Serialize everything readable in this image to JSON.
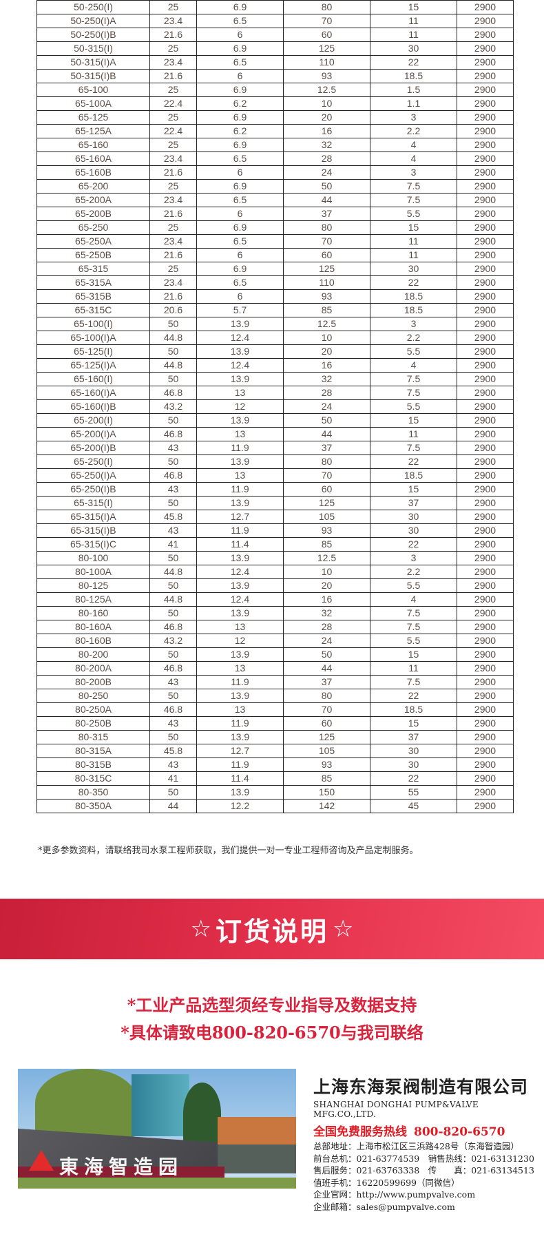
{
  "table": {
    "rows": [
      [
        "50-250(I)",
        "25",
        "6.9",
        "80",
        "15",
        "2900"
      ],
      [
        "50-250(I)A",
        "23.4",
        "6.5",
        "70",
        "11",
        "2900"
      ],
      [
        "50-250(I)B",
        "21.6",
        "6",
        "60",
        "11",
        "2900"
      ],
      [
        "50-315(I)",
        "25",
        "6.9",
        "125",
        "30",
        "2900"
      ],
      [
        "50-315(I)A",
        "23.4",
        "6.5",
        "110",
        "22",
        "2900"
      ],
      [
        "50-315(I)B",
        "21.6",
        "6",
        "93",
        "18.5",
        "2900"
      ],
      [
        "65-100",
        "25",
        "6.9",
        "12.5",
        "1.5",
        "2900"
      ],
      [
        "65-100A",
        "22.4",
        "6.2",
        "10",
        "1.1",
        "2900"
      ],
      [
        "65-125",
        "25",
        "6.9",
        "20",
        "3",
        "2900"
      ],
      [
        "65-125A",
        "22.4",
        "6.2",
        "16",
        "2.2",
        "2900"
      ],
      [
        "65-160",
        "25",
        "6.9",
        "32",
        "4",
        "2900"
      ],
      [
        "65-160A",
        "23.4",
        "6.5",
        "28",
        "4",
        "2900"
      ],
      [
        "65-160B",
        "21.6",
        "6",
        "24",
        "3",
        "2900"
      ],
      [
        "65-200",
        "25",
        "6.9",
        "50",
        "7.5",
        "2900"
      ],
      [
        "65-200A",
        "23.4",
        "6.5",
        "44",
        "7.5",
        "2900"
      ],
      [
        "65-200B",
        "21.6",
        "6",
        "37",
        "5.5",
        "2900"
      ],
      [
        "65-250",
        "25",
        "6.9",
        "80",
        "15",
        "2900"
      ],
      [
        "65-250A",
        "23.4",
        "6.5",
        "70",
        "11",
        "2900"
      ],
      [
        "65-250B",
        "21.6",
        "6",
        "60",
        "11",
        "2900"
      ],
      [
        "65-315",
        "25",
        "6.9",
        "125",
        "30",
        "2900"
      ],
      [
        "65-315A",
        "23.4",
        "6.5",
        "110",
        "22",
        "2900"
      ],
      [
        "65-315B",
        "21.6",
        "6",
        "93",
        "18.5",
        "2900"
      ],
      [
        "65-315C",
        "20.6",
        "5.7",
        "85",
        "18.5",
        "2900"
      ],
      [
        "65-100(I)",
        "50",
        "13.9",
        "12.5",
        "3",
        "2900"
      ],
      [
        "65-100(I)A",
        "44.8",
        "12.4",
        "10",
        "2.2",
        "2900"
      ],
      [
        "65-125(I)",
        "50",
        "13.9",
        "20",
        "5.5",
        "2900"
      ],
      [
        "65-125(I)A",
        "44.8",
        "12.4",
        "16",
        "4",
        "2900"
      ],
      [
        "65-160(I)",
        "50",
        "13.9",
        "32",
        "7.5",
        "2900"
      ],
      [
        "65-160(I)A",
        "46.8",
        "13",
        "28",
        "7.5",
        "2900"
      ],
      [
        "65-160(I)B",
        "43.2",
        "12",
        "24",
        "5.5",
        "2900"
      ],
      [
        "65-200(I)",
        "50",
        "13.9",
        "50",
        "15",
        "2900"
      ],
      [
        "65-200(I)A",
        "46.8",
        "13",
        "44",
        "11",
        "2900"
      ],
      [
        "65-200(I)B",
        "43",
        "11.9",
        "37",
        "7.5",
        "2900"
      ],
      [
        "65-250(I)",
        "50",
        "13.9",
        "80",
        "22",
        "2900"
      ],
      [
        "65-250(I)A",
        "46.8",
        "13",
        "70",
        "18.5",
        "2900"
      ],
      [
        "65-250(I)B",
        "43",
        "11.9",
        "60",
        "15",
        "2900"
      ],
      [
        "65-315(I)",
        "50",
        "13.9",
        "125",
        "37",
        "2900"
      ],
      [
        "65-315(I)A",
        "45.8",
        "12.7",
        "105",
        "30",
        "2900"
      ],
      [
        "65-315(I)B",
        "43",
        "11.9",
        "93",
        "30",
        "2900"
      ],
      [
        "65-315(I)C",
        "41",
        "11.4",
        "85",
        "22",
        "2900"
      ],
      [
        "80-100",
        "50",
        "13.9",
        "12.5",
        "3",
        "2900"
      ],
      [
        "80-100A",
        "44.8",
        "12.4",
        "10",
        "2.2",
        "2900"
      ],
      [
        "80-125",
        "50",
        "13.9",
        "20",
        "5.5",
        "2900"
      ],
      [
        "80-125A",
        "44.8",
        "12.4",
        "16",
        "4",
        "2900"
      ],
      [
        "80-160",
        "50",
        "13.9",
        "32",
        "7.5",
        "2900"
      ],
      [
        "80-160A",
        "46.8",
        "13",
        "28",
        "7.5",
        "2900"
      ],
      [
        "80-160B",
        "43.2",
        "12",
        "24",
        "5.5",
        "2900"
      ],
      [
        "80-200",
        "50",
        "13.9",
        "50",
        "15",
        "2900"
      ],
      [
        "80-200A",
        "46.8",
        "13",
        "44",
        "11",
        "2900"
      ],
      [
        "80-200B",
        "43",
        "11.9",
        "37",
        "7.5",
        "2900"
      ],
      [
        "80-250",
        "50",
        "13.9",
        "80",
        "22",
        "2900"
      ],
      [
        "80-250A",
        "46.8",
        "13",
        "70",
        "18.5",
        "2900"
      ],
      [
        "80-250B",
        "43",
        "11.9",
        "60",
        "15",
        "2900"
      ],
      [
        "80-315",
        "50",
        "13.9",
        "125",
        "37",
        "2900"
      ],
      [
        "80-315A",
        "45.8",
        "12.7",
        "105",
        "30",
        "2900"
      ],
      [
        "80-315B",
        "43",
        "11.9",
        "93",
        "30",
        "2900"
      ],
      [
        "80-315C",
        "41",
        "11.4",
        "85",
        "22",
        "2900"
      ],
      [
        "80-350",
        "50",
        "13.9",
        "150",
        "55",
        "2900"
      ],
      [
        "80-350A",
        "44",
        "12.2",
        "142",
        "45",
        "2900"
      ]
    ]
  },
  "footnote": "*更多参数资料，请联络我司水泵工程师获取，我们提供一对一专业工程师咨询及产品定制服务。",
  "banner": {
    "star_left": "☆",
    "title": "订货说明",
    "star_right": "☆"
  },
  "order_notes": [
    "*工业产品选型须经专业指导及数据支持",
    "*具体请致电800-820-6570与我司联络"
  ],
  "photo": {
    "sign_text": "東海智造园"
  },
  "company": {
    "name_cn": "上海东海泵阀制造有限公司",
    "name_en": "SHANGHAI DONGHAI PUMP&VALVE MFG.CO.,LTD.",
    "hotline_label": "全国免费服务热线",
    "hotline": "800-820-6570",
    "info": [
      "总部地址：上海市松江区三浜路428号（东海智造园）",
      "前台总机：021-63774539　销售热线：021-63131230",
      "售后服务：021-63763338　传　　真：021-63134513",
      "值班手机：16220599699（同微信）",
      "企业官网：http://www.pumpvalve.com",
      "企业邮箱：sales@pumpvalve.com"
    ]
  },
  "colors": {
    "accent_red": "#d9233c",
    "table_text": "#5a4e46"
  }
}
